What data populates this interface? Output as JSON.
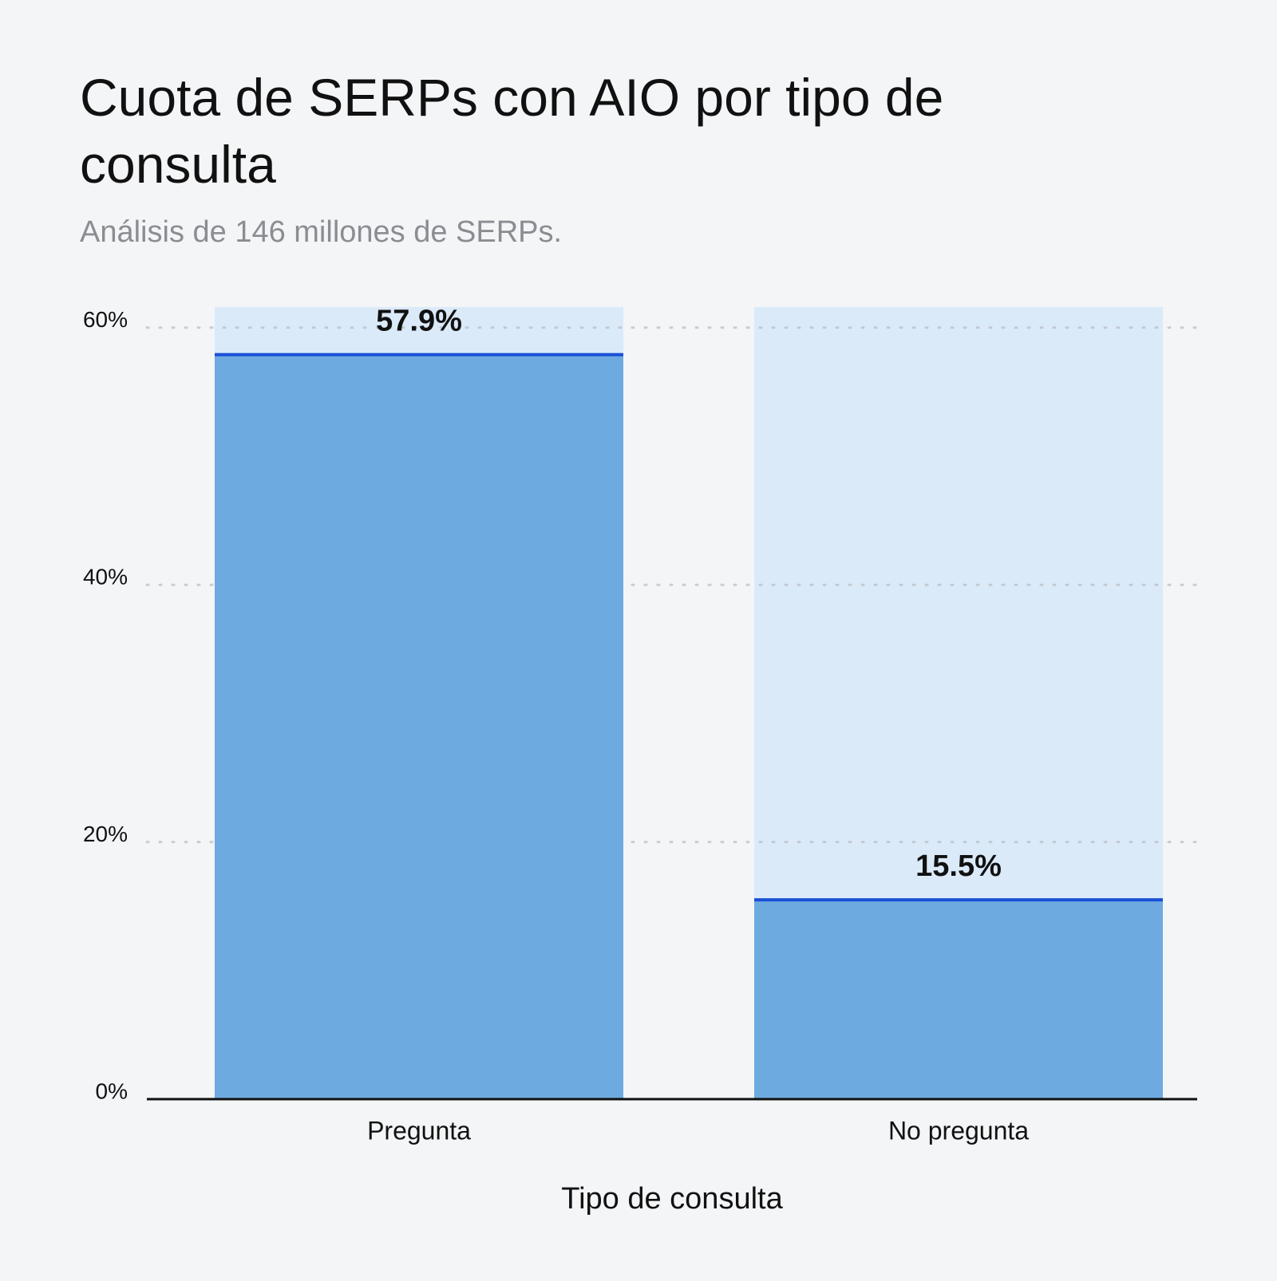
{
  "chart_data": {
    "type": "bar",
    "title": "Cuota de SERPs con AIO por tipo de consulta",
    "subtitle": "Análisis de 146 millones de SERPs.",
    "x_label": "Tipo de consulta",
    "categories": [
      "Pregunta",
      "No pregunta"
    ],
    "values": [
      57.9,
      15.5
    ],
    "value_labels": [
      "57.9%",
      "15.5%"
    ],
    "color": "#6daae0",
    "background_color": "#dbeaf9",
    "marker_color": "#1a4fd6",
    "ylim": [
      0,
      61.6
    ],
    "yticks": [
      {
        "value": 0,
        "label": "0%"
      },
      {
        "value": 20,
        "label": "20%"
      },
      {
        "value": 40,
        "label": "40%"
      },
      {
        "value": 60,
        "label": "60%"
      }
    ],
    "grid": true
  }
}
